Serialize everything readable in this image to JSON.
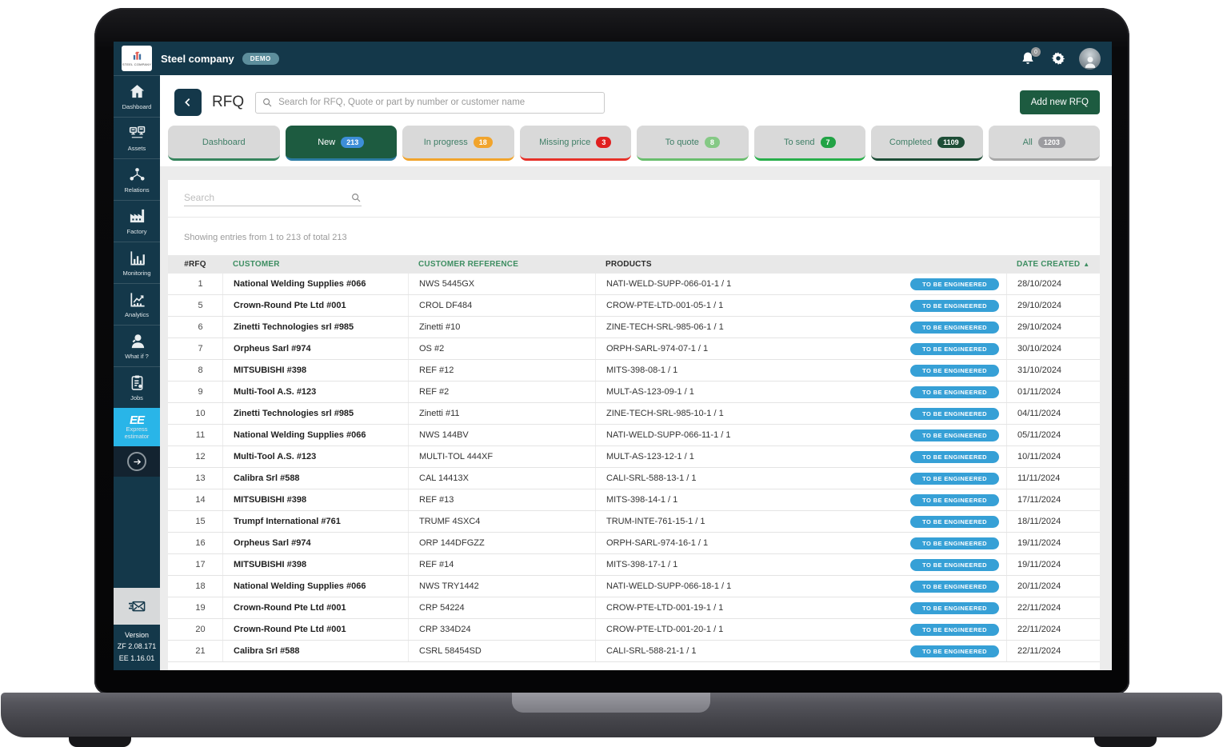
{
  "colors": {
    "header_teal": "#14384a",
    "active_tab_green": "#1d5b40",
    "express_cyan": "#29b5e8",
    "status_pill_blue": "#36a0d6",
    "badge_blue": "#3d8ed8",
    "badge_orange": "#f1a42c",
    "badge_red": "#e02020",
    "badge_light_green": "#85c985",
    "badge_green": "#22a345",
    "badge_dark_green": "#1d4d36",
    "badge_gray": "#9c9ca0"
  },
  "topbar": {
    "brand_name": "Steel company",
    "logo_caption": "STEEL COMPANY",
    "demo_badge": "DEMO",
    "notifications_count": "0"
  },
  "sidebar": {
    "items": [
      {
        "label": "Dashboard",
        "icon": "home"
      },
      {
        "label": "Assets",
        "icon": "assets"
      },
      {
        "label": "Relations",
        "icon": "relations"
      },
      {
        "label": "Factory",
        "icon": "factory"
      },
      {
        "label": "Monitoring",
        "icon": "monitoring"
      },
      {
        "label": "Analytics",
        "icon": "analytics"
      },
      {
        "label": "What if ?",
        "icon": "whatif"
      },
      {
        "label": "Jobs",
        "icon": "jobs"
      }
    ],
    "express": {
      "logo": "EE",
      "label_line1": "Express",
      "label_line2": "estimator"
    },
    "version": {
      "title": "Version",
      "zf": "ZF 2.08.171",
      "ee": "EE 1.16.01"
    }
  },
  "page": {
    "title": "RFQ",
    "search_placeholder": "Search for RFQ, Quote or part by number or customer name",
    "add_button": "Add new RFQ"
  },
  "tabs": [
    {
      "label": "Dashboard",
      "style": "tab-dashboard"
    },
    {
      "label": "New",
      "badge": "213",
      "style": "tab-new active"
    },
    {
      "label": "In progress",
      "badge": "18",
      "style": "tab-progress"
    },
    {
      "label": "Missing price",
      "badge": "3",
      "style": "tab-missing"
    },
    {
      "label": "To quote",
      "badge": "8",
      "style": "tab-quote"
    },
    {
      "label": "To send",
      "badge": "7",
      "style": "tab-send"
    },
    {
      "label": "Completed",
      "badge": "1109",
      "style": "tab-completed"
    },
    {
      "label": "All",
      "badge": "1203",
      "style": "tab-all"
    }
  ],
  "table": {
    "filter_placeholder": "Search",
    "summary": "Showing entries from 1 to 213 of total 213",
    "columns": [
      "#RFQ",
      "CUSTOMER",
      "CUSTOMER REFERENCE",
      "PRODUCTS",
      "DATE CREATED"
    ],
    "sort_indicator": "▲",
    "rows": [
      {
        "rfq": "1",
        "customer": "National Welding Supplies #066",
        "reference": "NWS 5445GX",
        "product": "NATI-WELD-SUPP-066-01-1 / 1",
        "status": "TO BE ENGINEERED",
        "date": "28/10/2024"
      },
      {
        "rfq": "5",
        "customer": "Crown-Round Pte Ltd #001",
        "reference": "CROL DF484",
        "product": "CROW-PTE-LTD-001-05-1 / 1",
        "status": "TO BE ENGINEERED",
        "date": "29/10/2024"
      },
      {
        "rfq": "6",
        "customer": "Zinetti Technologies srl #985",
        "reference": "Zinetti #10",
        "product": "ZINE-TECH-SRL-985-06-1 / 1",
        "status": "TO BE ENGINEERED",
        "date": "29/10/2024"
      },
      {
        "rfq": "7",
        "customer": "Orpheus Sarl #974",
        "reference": "OS #2",
        "product": "ORPH-SARL-974-07-1 / 1",
        "status": "TO BE ENGINEERED",
        "date": "30/10/2024"
      },
      {
        "rfq": "8",
        "customer": "MITSUBISHI #398",
        "reference": "REF #12",
        "product": "MITS-398-08-1 / 1",
        "status": "TO BE ENGINEERED",
        "date": "31/10/2024"
      },
      {
        "rfq": "9",
        "customer": "Multi-Tool A.S. #123",
        "reference": "REF #2",
        "product": "MULT-AS-123-09-1 / 1",
        "status": "TO BE ENGINEERED",
        "date": "01/11/2024"
      },
      {
        "rfq": "10",
        "customer": "Zinetti Technologies srl #985",
        "reference": "Zinetti #11",
        "product": "ZINE-TECH-SRL-985-10-1 / 1",
        "status": "TO BE ENGINEERED",
        "date": "04/11/2024"
      },
      {
        "rfq": "11",
        "customer": "National Welding Supplies #066",
        "reference": "NWS 144BV",
        "product": "NATI-WELD-SUPP-066-11-1 / 1",
        "status": "TO BE ENGINEERED",
        "date": "05/11/2024"
      },
      {
        "rfq": "12",
        "customer": "Multi-Tool A.S. #123",
        "reference": "MULTI-TOL 444XF",
        "product": "MULT-AS-123-12-1 / 1",
        "status": "TO BE ENGINEERED",
        "date": "10/11/2024"
      },
      {
        "rfq": "13",
        "customer": "Calibra Srl #588",
        "reference": "CAL 14413X",
        "product": "CALI-SRL-588-13-1 / 1",
        "status": "TO BE ENGINEERED",
        "date": "11/11/2024"
      },
      {
        "rfq": "14",
        "customer": "MITSUBISHI #398",
        "reference": "REF #13",
        "product": "MITS-398-14-1 / 1",
        "status": "TO BE ENGINEERED",
        "date": "17/11/2024"
      },
      {
        "rfq": "15",
        "customer": "Trumpf International #761",
        "reference": "TRUMF 4SXC4",
        "product": "TRUM-INTE-761-15-1 / 1",
        "status": "TO BE ENGINEERED",
        "date": "18/11/2024"
      },
      {
        "rfq": "16",
        "customer": "Orpheus Sarl #974",
        "reference": "ORP 144DFGZZ",
        "product": "ORPH-SARL-974-16-1 / 1",
        "status": "TO BE ENGINEERED",
        "date": "19/11/2024"
      },
      {
        "rfq": "17",
        "customer": "MITSUBISHI #398",
        "reference": "REF #14",
        "product": "MITS-398-17-1 / 1",
        "status": "TO BE ENGINEERED",
        "date": "19/11/2024"
      },
      {
        "rfq": "18",
        "customer": "National Welding Supplies #066",
        "reference": "NWS TRY1442",
        "product": "NATI-WELD-SUPP-066-18-1 / 1",
        "status": "TO BE ENGINEERED",
        "date": "20/11/2024"
      },
      {
        "rfq": "19",
        "customer": "Crown-Round Pte Ltd #001",
        "reference": "CRP 54224",
        "product": "CROW-PTE-LTD-001-19-1 / 1",
        "status": "TO BE ENGINEERED",
        "date": "22/11/2024"
      },
      {
        "rfq": "20",
        "customer": "Crown-Round Pte Ltd #001",
        "reference": "CRP 334D24",
        "product": "CROW-PTE-LTD-001-20-1 / 1",
        "status": "TO BE ENGINEERED",
        "date": "22/11/2024"
      },
      {
        "rfq": "21",
        "customer": "Calibra Srl #588",
        "reference": "CSRL 58454SD",
        "product": "CALI-SRL-588-21-1 / 1",
        "status": "TO BE ENGINEERED",
        "date": "22/11/2024"
      }
    ]
  }
}
